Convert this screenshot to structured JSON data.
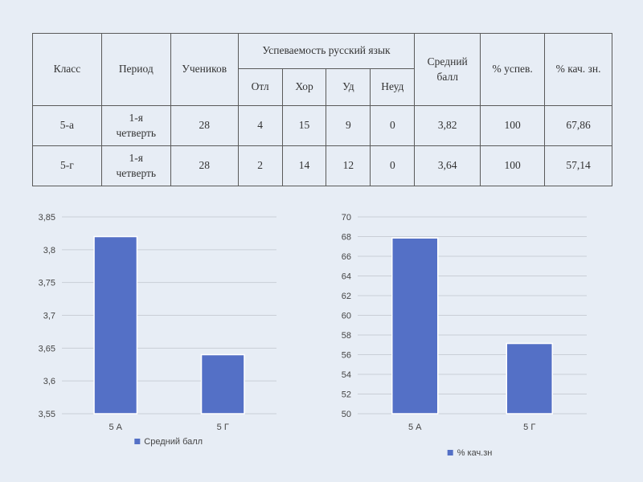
{
  "table": {
    "headers": {
      "class": "Класс",
      "period": "Период",
      "students": "Учеников",
      "group": "Успеваемость русский язык",
      "otl": "Отл",
      "hor": "Хор",
      "ud": "Уд",
      "neud": "Неуд",
      "avg_line1": "Средний",
      "avg_line2": "балл",
      "pct_success": "% успев.",
      "pct_quality": "% кач. зн."
    },
    "rows": [
      {
        "class": "5-а",
        "period_line1": "1-я",
        "period_line2": "четверть",
        "students": "28",
        "otl": "4",
        "hor": "15",
        "ud": "9",
        "neud": "0",
        "avg": "3,82",
        "pct_success": "100",
        "pct_quality": "67,86"
      },
      {
        "class": "5-г",
        "period_line1": "1-я",
        "period_line2": "четверть",
        "students": "28",
        "otl": "2",
        "hor": "14",
        "ud": "12",
        "neud": "0",
        "avg": "3,64",
        "pct_success": "100",
        "pct_quality": "57,14"
      }
    ]
  },
  "chart_data": [
    {
      "type": "bar",
      "categories": [
        "5 А",
        "5 Г"
      ],
      "series": [
        {
          "name": "Средний балл",
          "values": [
            3.82,
            3.64
          ]
        }
      ],
      "ylim": [
        3.55,
        3.85
      ],
      "yticks": [
        "3,55",
        "3,6",
        "3,65",
        "3,7",
        "3,75",
        "3,8",
        "3,85"
      ],
      "grid": true,
      "legend": "bottom",
      "color": "#5470c6"
    },
    {
      "type": "bar",
      "categories": [
        "5 А",
        "5 Г"
      ],
      "series": [
        {
          "name": "% кач.зн",
          "values": [
            67.86,
            57.14
          ]
        }
      ],
      "ylim": [
        50,
        70
      ],
      "yticks": [
        "50",
        "52",
        "54",
        "56",
        "58",
        "60",
        "62",
        "64",
        "66",
        "68",
        "70"
      ],
      "grid": true,
      "legend": "bottom",
      "color": "#5470c6"
    }
  ]
}
